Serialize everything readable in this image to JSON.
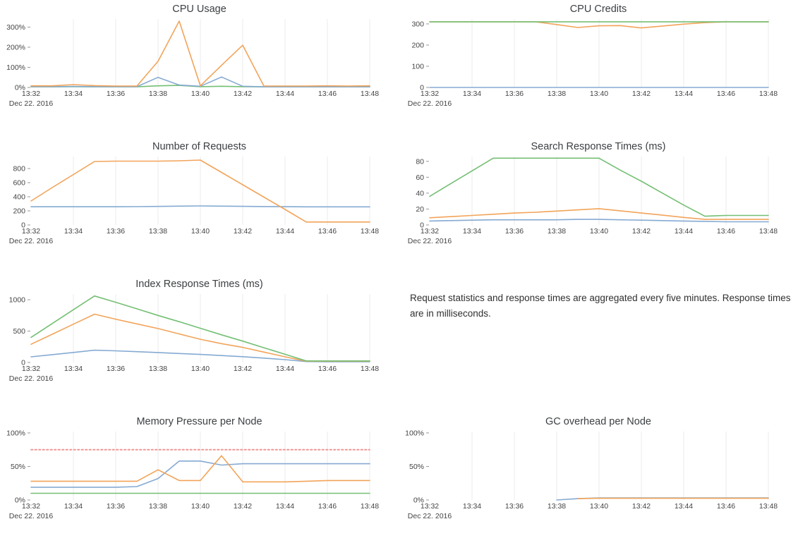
{
  "palette": {
    "blue": "#85aad2",
    "orange": "#f2a45a",
    "green": "#74bf74",
    "red_dashed": "#f09090",
    "gridline": "#ebebeb",
    "tick_mark": "#999999",
    "tick_text": "#444444",
    "title_text": "#3c4043"
  },
  "note": {
    "text": "Request statistics and response times are aggregated every five minutes. Response times are in milliseconds."
  },
  "chart_data": [
    {
      "type": "line",
      "title": "CPU Usage",
      "x_tick_labels": [
        "13:32",
        "13:34",
        "13:36",
        "13:38",
        "13:40",
        "13:42",
        "13:44",
        "13:46",
        "13:48"
      ],
      "date_label": "Dec 22. 2016",
      "ylim": [
        0,
        340
      ],
      "y_ticks": [
        {
          "value": 0,
          "label": "0%"
        },
        {
          "value": 100,
          "label": "100%"
        },
        {
          "value": 200,
          "label": "200%"
        },
        {
          "value": 300,
          "label": "300%"
        }
      ],
      "series": [
        {
          "name": "series-green",
          "color": "green",
          "values": [
            3,
            3,
            4,
            3,
            3,
            3,
            8,
            10,
            4,
            6,
            4,
            3,
            3,
            3,
            3,
            3,
            3
          ]
        },
        {
          "name": "series-blue",
          "color": "blue",
          "values": [
            4,
            4,
            5,
            4,
            4,
            4,
            50,
            12,
            6,
            52,
            6,
            3,
            3,
            3,
            3,
            3,
            3
          ]
        },
        {
          "name": "series-orange",
          "color": "orange",
          "values": [
            8,
            8,
            14,
            9,
            7,
            7,
            130,
            330,
            8,
            110,
            210,
            7,
            7,
            7,
            8,
            7,
            8
          ]
        }
      ]
    },
    {
      "type": "line",
      "title": "CPU Credits",
      "x_tick_labels": [
        "13:32",
        "13:34",
        "13:36",
        "13:38",
        "13:40",
        "13:42",
        "13:44",
        "13:46",
        "13:48"
      ],
      "date_label": "Dec 22. 2016",
      "ylim": [
        0,
        323
      ],
      "y_ticks": [
        {
          "value": 0,
          "label": "0"
        },
        {
          "value": 100,
          "label": "100"
        },
        {
          "value": 200,
          "label": "200"
        },
        {
          "value": 300,
          "label": "300"
        }
      ],
      "series": [
        {
          "name": "series-blue",
          "color": "blue",
          "values": [
            0,
            0,
            0,
            0,
            0,
            0,
            0,
            0,
            0,
            0,
            0,
            0,
            0,
            0,
            0,
            0,
            0
          ]
        },
        {
          "name": "series-orange",
          "color": "orange",
          "values": [
            310,
            310,
            310,
            310,
            310,
            310,
            297,
            283,
            291,
            292,
            281,
            290,
            299,
            306,
            310,
            310,
            310
          ]
        },
        {
          "name": "series-green",
          "color": "green",
          "values": [
            310,
            310,
            310,
            310,
            310,
            310,
            310,
            310,
            310,
            310,
            310,
            310,
            310,
            310,
            310,
            310,
            310
          ]
        }
      ]
    },
    {
      "type": "line",
      "title": "Number of Requests",
      "x_tick_labels": [
        "13:32",
        "13:34",
        "13:36",
        "13:38",
        "13:40",
        "13:42",
        "13:44",
        "13:46",
        "13:48"
      ],
      "date_label": "Dec 22. 2016",
      "ylim": [
        0,
        970
      ],
      "y_ticks": [
        {
          "value": 0,
          "label": "0"
        },
        {
          "value": 200,
          "label": "200"
        },
        {
          "value": 400,
          "label": "400"
        },
        {
          "value": 600,
          "label": "600"
        },
        {
          "value": 800,
          "label": "800"
        }
      ],
      "series": [
        {
          "name": "series-blue",
          "color": "blue",
          "values": [
            258,
            258,
            258,
            258,
            258,
            260,
            263,
            267,
            270,
            267,
            264,
            261,
            259,
            257,
            257,
            257,
            257
          ]
        },
        {
          "name": "series-orange",
          "color": "orange",
          "values": [
            340,
            530,
            715,
            900,
            905,
            905,
            905,
            910,
            920,
            745,
            570,
            395,
            220,
            42,
            42,
            42,
            42
          ]
        }
      ]
    },
    {
      "type": "line",
      "title": "Search Response Times (ms)",
      "x_tick_labels": [
        "13:32",
        "13:34",
        "13:36",
        "13:38",
        "13:40",
        "13:42",
        "13:44",
        "13:46",
        "13:48"
      ],
      "date_label": "Dec 22. 2016",
      "ylim": [
        0,
        86
      ],
      "y_ticks": [
        {
          "value": 0,
          "label": "0"
        },
        {
          "value": 20,
          "label": "20"
        },
        {
          "value": 40,
          "label": "40"
        },
        {
          "value": 60,
          "label": "60"
        },
        {
          "value": 80,
          "label": "80"
        }
      ],
      "series": [
        {
          "name": "series-blue",
          "color": "blue",
          "values": [
            5,
            5.5,
            6,
            6.5,
            6.5,
            6.5,
            6.5,
            7,
            7,
            6.5,
            6,
            5.5,
            5,
            4.5,
            4,
            4,
            4
          ]
        },
        {
          "name": "series-orange",
          "color": "orange",
          "values": [
            9,
            10.5,
            12,
            13.5,
            15,
            16,
            17.5,
            19,
            20.5,
            17.8,
            15,
            12.3,
            9.5,
            7,
            7,
            7,
            7
          ]
        },
        {
          "name": "series-green",
          "color": "green",
          "values": [
            36,
            52,
            68,
            84,
            84,
            84,
            84,
            84,
            84,
            69,
            55,
            40,
            25,
            11,
            12,
            12,
            12
          ]
        }
      ]
    },
    {
      "type": "line",
      "title": "Index Response Times (ms)",
      "x_tick_labels": [
        "13:32",
        "13:34",
        "13:36",
        "13:38",
        "13:40",
        "13:42",
        "13:44",
        "13:46",
        "13:48"
      ],
      "date_label": "Dec 22. 2016",
      "ylim": [
        0,
        1090
      ],
      "y_ticks": [
        {
          "value": 0,
          "label": "0"
        },
        {
          "value": 500,
          "label": "500"
        },
        {
          "value": 1000,
          "label": "1000"
        }
      ],
      "series": [
        {
          "name": "series-blue",
          "color": "blue",
          "values": [
            90,
            125,
            160,
            195,
            185,
            172,
            158,
            143,
            128,
            110,
            92,
            70,
            45,
            15,
            12,
            12,
            12
          ]
        },
        {
          "name": "series-orange",
          "color": "orange",
          "values": [
            290,
            450,
            610,
            770,
            690,
            615,
            540,
            455,
            370,
            300,
            240,
            165,
            90,
            20,
            20,
            20,
            20
          ]
        },
        {
          "name": "series-green",
          "color": "green",
          "values": [
            400,
            620,
            840,
            1060,
            960,
            855,
            750,
            650,
            545,
            440,
            340,
            235,
            130,
            25,
            25,
            25,
            25
          ]
        }
      ]
    },
    {
      "type": "line",
      "title": "Memory Pressure per Node",
      "x_tick_labels": [
        "13:32",
        "13:34",
        "13:36",
        "13:38",
        "13:40",
        "13:42",
        "13:44",
        "13:46",
        "13:48"
      ],
      "date_label": "Dec 22. 2016",
      "ylim": [
        0,
        102
      ],
      "y_ticks": [
        {
          "value": 0,
          "label": "0%"
        },
        {
          "value": 50,
          "label": "50%"
        },
        {
          "value": 100,
          "label": "100%"
        }
      ],
      "series": [
        {
          "name": "series-green",
          "color": "green",
          "values": [
            10,
            10,
            10,
            10,
            10,
            10,
            10,
            10,
            10,
            10,
            10,
            10,
            10,
            10,
            10,
            10,
            10
          ]
        },
        {
          "name": "series-blue",
          "color": "blue",
          "values": [
            19,
            19,
            19,
            19,
            19,
            20,
            32,
            58,
            58,
            52,
            54,
            54,
            54,
            54,
            54,
            54,
            54
          ]
        },
        {
          "name": "series-orange",
          "color": "orange",
          "values": [
            28,
            28,
            28,
            28,
            28,
            28,
            45,
            29,
            29,
            66,
            27,
            27,
            27,
            28,
            29,
            29,
            29
          ]
        },
        {
          "name": "threshold",
          "color": "red_dashed",
          "dash": true,
          "values": [
            75,
            75,
            75,
            75,
            75,
            75,
            75,
            75,
            75,
            75,
            75,
            75,
            75,
            75,
            75,
            75,
            75
          ]
        }
      ]
    },
    {
      "type": "line",
      "title": "GC overhead per Node",
      "x_tick_labels": [
        "13:32",
        "13:34",
        "13:36",
        "13:38",
        "13:40",
        "13:42",
        "13:44",
        "13:46",
        "13:48"
      ],
      "date_label": "Dec 22. 2016",
      "ylim": [
        0,
        102
      ],
      "y_ticks": [
        {
          "value": 0,
          "label": "0%"
        },
        {
          "value": 50,
          "label": "50%"
        },
        {
          "value": 100,
          "label": "100%"
        }
      ],
      "series": [
        {
          "name": "series-blue",
          "color": "blue",
          "values": [
            null,
            null,
            null,
            null,
            null,
            null,
            0,
            2,
            3,
            3,
            3,
            3,
            3,
            3,
            3,
            3,
            3
          ]
        },
        {
          "name": "series-orange",
          "color": "orange",
          "values": [
            null,
            null,
            null,
            null,
            null,
            null,
            null,
            2,
            2.5,
            2.5,
            2.5,
            2.5,
            2.5,
            2.5,
            2.5,
            2.5,
            2.5
          ]
        }
      ]
    }
  ]
}
